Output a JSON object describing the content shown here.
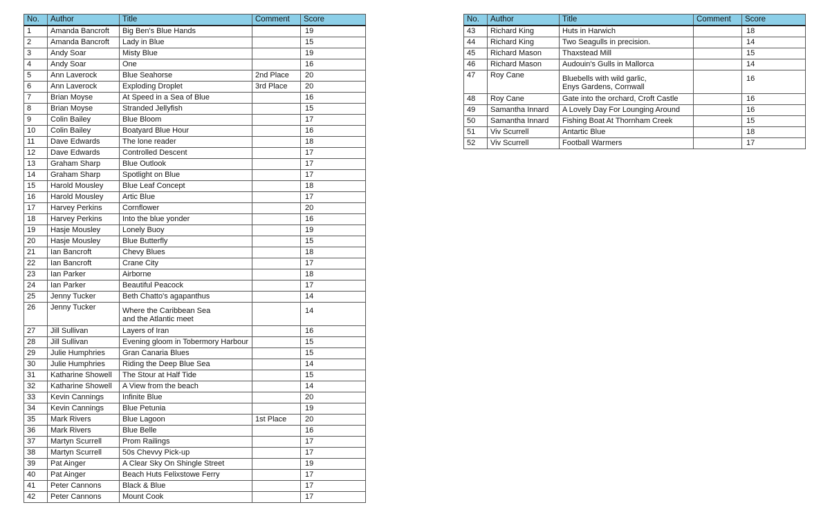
{
  "columns": [
    "No.",
    "Author",
    "Title",
    "Comment",
    "Score"
  ],
  "colors": {
    "header": "#8ccfe8"
  },
  "tables": [
    {
      "rows": [
        [
          "1",
          "Amanda Bancroft",
          "Big Ben's Blue Hands",
          "",
          "19"
        ],
        [
          "2",
          "Amanda Bancroft",
          "Lady in Blue",
          "",
          "15"
        ],
        [
          "3",
          "Andy Soar",
          "Misty Blue",
          "",
          "19"
        ],
        [
          "4",
          "Andy Soar",
          "One",
          "",
          "16"
        ],
        [
          "5",
          "Ann Laverock",
          "Blue Seahorse",
          "2nd Place",
          "20"
        ],
        [
          "6",
          "Ann Laverock",
          "Exploding Droplet",
          "3rd Place",
          "20"
        ],
        [
          "7",
          "Brian Moyse",
          "At Speed in a Sea of Blue",
          "",
          "16"
        ],
        [
          "8",
          "Brian Moyse",
          "Stranded Jellyfish",
          "",
          "15"
        ],
        [
          "9",
          "Colin Bailey",
          "Blue Bloom",
          "",
          "17"
        ],
        [
          "10",
          "Colin Bailey",
          "Boatyard Blue Hour",
          "",
          "16"
        ],
        [
          "11",
          "Dave Edwards",
          "The lone reader",
          "",
          "18"
        ],
        [
          "12",
          "Dave Edwards",
          "Controlled Descent",
          "",
          "17"
        ],
        [
          "13",
          "Graham Sharp",
          "Blue Outlook",
          "",
          "17"
        ],
        [
          "14",
          "Graham Sharp",
          "Spotlight on Blue",
          "",
          "17"
        ],
        [
          "15",
          "Harold Mousley",
          "Blue Leaf Concept",
          "",
          "18"
        ],
        [
          "16",
          "Harold Mousley",
          "Artic Blue",
          "",
          "17"
        ],
        [
          "17",
          "Harvey Perkins",
          "Cornflower",
          "",
          "20"
        ],
        [
          "18",
          "Harvey Perkins",
          "Into the blue yonder",
          "",
          "16"
        ],
        [
          "19",
          "Hasje Mousley",
          "Lonely Buoy",
          "",
          "19"
        ],
        [
          "20",
          "Hasje Mousley",
          "Blue Butterfly",
          "",
          "15"
        ],
        [
          "21",
          "Ian Bancroft",
          "Chevy Blues",
          "",
          "18"
        ],
        [
          "22",
          "Ian Bancroft",
          "Crane City",
          "",
          "17"
        ],
        [
          "23",
          "Ian Parker",
          "Airborne",
          "",
          "18"
        ],
        [
          "24",
          "Ian Parker",
          "Beautiful Peacock",
          "",
          "17"
        ],
        [
          "25",
          "Jenny Tucker",
          "Beth Chatto's agapanthus",
          "",
          "14"
        ],
        [
          "26",
          "Jenny Tucker",
          "Where the Caribbean Sea\nand the Atlantic meet",
          "",
          "14"
        ],
        [
          "27",
          "Jill Sullivan",
          "Layers of Iran",
          "",
          "16"
        ],
        [
          "28",
          "Jill Sullivan",
          "Evening gloom in Tobermory Harbour",
          "",
          "15"
        ],
        [
          "29",
          "Julie Humphries",
          "Gran Canaria Blues",
          "",
          "15"
        ],
        [
          "30",
          "Julie Humphries",
          "Riding the Deep Blue Sea",
          "",
          "14"
        ],
        [
          "31",
          "Katharine Showell",
          "The Stour at Half Tide",
          "",
          "15"
        ],
        [
          "32",
          "Katharine Showell",
          "A View from the beach",
          "",
          "14"
        ],
        [
          "33",
          "Kevin Cannings",
          "Infinite Blue",
          "",
          "20"
        ],
        [
          "34",
          "Kevin Cannings",
          "Blue Petunia",
          "",
          "19"
        ],
        [
          "35",
          "Mark Rivers",
          "Blue Lagoon",
          "1st Place",
          "20"
        ],
        [
          "36",
          "Mark Rivers",
          "Blue Belle",
          "",
          "16"
        ],
        [
          "37",
          "Martyn Scurrell",
          "Prom Railings",
          "",
          "17"
        ],
        [
          "38",
          "Martyn Scurrell",
          "50s Chevvy Pick-up",
          "",
          "17"
        ],
        [
          "39",
          "Pat Ainger",
          "A Clear Sky On Shingle Street",
          "",
          "19"
        ],
        [
          "40",
          "Pat Ainger",
          "Beach Huts Felixstowe Ferry",
          "",
          "17"
        ],
        [
          "41",
          "Peter Cannons",
          "Black & Blue",
          "",
          "17"
        ],
        [
          "42",
          "Peter Cannons",
          "Mount Cook",
          "",
          "17"
        ]
      ]
    },
    {
      "rows": [
        [
          "43",
          "Richard King",
          "Huts in Harwich",
          "",
          "18"
        ],
        [
          "44",
          "Richard King",
          "Two Seagulls in precision.",
          "",
          "14"
        ],
        [
          "45",
          "Richard Mason",
          "Thaxstead Mill",
          "",
          "15"
        ],
        [
          "46",
          "Richard Mason",
          "Audouin's Gulls in Mallorca",
          "",
          "14"
        ],
        [
          "47",
          "Roy Cane",
          "Bluebells  with wild garlic,\nEnys Gardens, Cornwall",
          "",
          "16"
        ],
        [
          "48",
          "Roy Cane",
          "Gate into the orchard, Croft Castle",
          "",
          "16"
        ],
        [
          "49",
          "Samantha Innard",
          "A Lovely Day For Lounging Around",
          "",
          "16"
        ],
        [
          "50",
          "Samantha Innard",
          "Fishing Boat At Thornham Creek",
          "",
          "15"
        ],
        [
          "51",
          "Viv Scurrell",
          "Antartic Blue",
          "",
          "18"
        ],
        [
          "52",
          "Viv Scurrell",
          "Football Warmers",
          "",
          "17"
        ]
      ]
    }
  ]
}
